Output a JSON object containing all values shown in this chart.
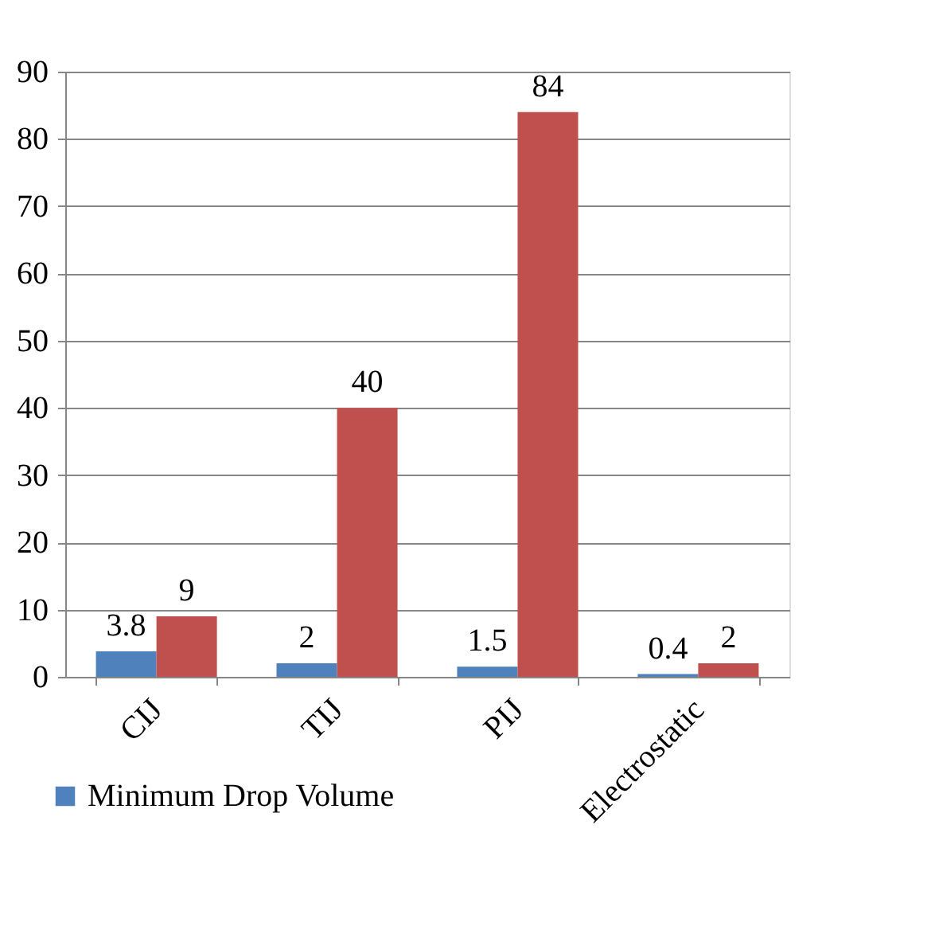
{
  "chart_data": {
    "type": "bar",
    "categories": [
      "CIJ",
      "TIJ",
      "PIJ",
      "Electrostatic"
    ],
    "series": [
      {
        "name": "Minimum Drop Volume",
        "color": "#4f81bd",
        "values": [
          3.8,
          2,
          1.5,
          0.4
        ]
      },
      {
        "color": "#c0504d",
        "values": [
          9,
          40,
          84,
          2
        ]
      }
    ],
    "ylim": [
      0,
      90
    ],
    "yticks": [
      0,
      10,
      20,
      30,
      40,
      50,
      60,
      70,
      80,
      90
    ],
    "grid": "y",
    "legend": "bottom left",
    "data_labels": true
  }
}
